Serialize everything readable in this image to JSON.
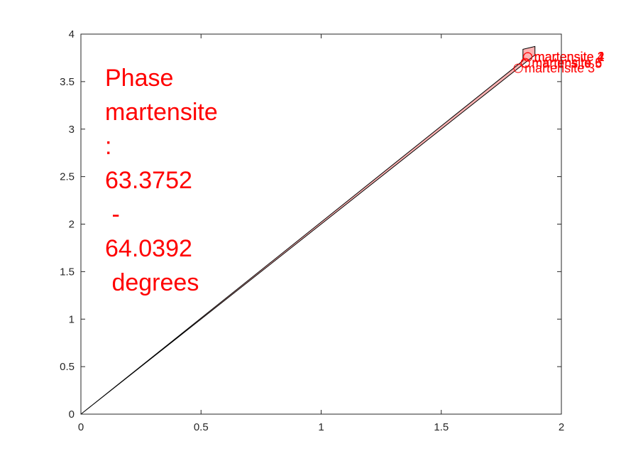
{
  "chart_data": {
    "type": "line",
    "title": "",
    "xlabel": "",
    "ylabel": "",
    "xlim": [
      0,
      2
    ],
    "ylim": [
      0,
      4
    ],
    "x_ticks": [
      0,
      0.5,
      1,
      1.5,
      2
    ],
    "x_tick_labels": [
      "0",
      "0.5",
      "1",
      "1.5",
      "2"
    ],
    "y_ticks": [
      0,
      0.5,
      1,
      1.5,
      2,
      2.5,
      3,
      3.5,
      4
    ],
    "y_tick_labels": [
      "0",
      "0.5",
      "1",
      "1.5",
      "2",
      "2.5",
      "3",
      "3.5",
      "4"
    ],
    "grid": false,
    "fill_color": "#ffb3b3",
    "edge_color": "#000000",
    "text_color": "#ff0000",
    "region": {
      "lower_edge": [
        [
          0,
          0
        ],
        [
          1.89,
          3.78
        ]
      ],
      "upper_edge": [
        [
          0,
          0
        ],
        [
          1.84,
          3.72
        ],
        [
          1.84,
          3.84
        ],
        [
          1.89,
          3.87
        ],
        [
          1.89,
          3.78
        ]
      ]
    },
    "annotation_lines": [
      "Phase",
      "martensite",
      ":",
      "63.3752",
      " -",
      "64.0392",
      " degrees"
    ],
    "point_labels": [
      {
        "text": "martensite 1",
        "x": 1.86,
        "y": 3.76
      },
      {
        "text": "martensite 2",
        "x": 1.86,
        "y": 3.76
      },
      {
        "text": "martensite 3",
        "x": 1.82,
        "y": 3.64
      },
      {
        "text": "martensite 4",
        "x": 1.86,
        "y": 3.76
      },
      {
        "text": "martensite 5",
        "x": 1.85,
        "y": 3.69
      },
      {
        "text": "martensite 6",
        "x": 1.85,
        "y": 3.7
      }
    ]
  }
}
